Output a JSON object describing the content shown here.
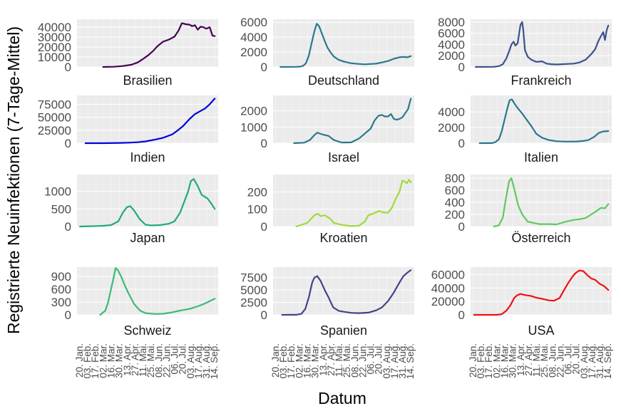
{
  "chart_data": {
    "type": "line",
    "ylabel": "Registrierte Neuinfektionen (7-Tage-Mittel)",
    "xlabel": "Datum",
    "x_tick_labels": [
      "20. Jan.",
      "03. Feb.",
      "17. Feb.",
      "02. Mar.",
      "16. Mar.",
      "30. Mar.",
      "13. Apr.",
      "27. Apr.",
      "11. Mai.",
      "25. Mai.",
      "08. Jun.",
      "22. Jun.",
      "06. Jul.",
      "20. Jul.",
      "03. Aug.",
      "17. Aug.",
      "31. Aug.",
      "14. Sep."
    ],
    "x_range": [
      "2020-01-15",
      "2020-09-20"
    ],
    "panels": [
      {
        "name": "Brasilien",
        "color": "#440154",
        "yticks": [
          0,
          10000,
          20000,
          30000,
          40000
        ],
        "ytick_labels": [
          "0",
          "10000",
          "20000",
          "30000",
          "40000"
        ],
        "ylim": [
          0,
          48000
        ],
        "x": [
          "2020-03-01",
          "2020-03-20",
          "2020-04-05",
          "2020-04-20",
          "2020-05-01",
          "2020-05-10",
          "2020-05-20",
          "2020-05-28",
          "2020-06-05",
          "2020-06-15",
          "2020-06-25",
          "2020-07-05",
          "2020-07-12",
          "2020-07-18",
          "2020-07-25",
          "2020-08-01",
          "2020-08-05",
          "2020-08-10",
          "2020-08-15",
          "2020-08-20",
          "2020-08-25",
          "2020-08-30",
          "2020-09-05",
          "2020-09-10",
          "2020-09-14"
        ],
        "y": [
          0,
          200,
          900,
          2200,
          4500,
          7800,
          12000,
          16000,
          21000,
          25500,
          27500,
          30500,
          36500,
          44000,
          43000,
          42500,
          41000,
          42000,
          37500,
          40500,
          40000,
          38500,
          40000,
          31500,
          31000
        ]
      },
      {
        "name": "Deutschland",
        "color": "#2a788e",
        "yticks": [
          0,
          2000,
          4000,
          6000
        ],
        "ytick_labels": [
          "0",
          "2000",
          "4000",
          "6000"
        ],
        "ylim": [
          0,
          6400
        ],
        "x": [
          "2020-01-28",
          "2020-02-26",
          "2020-03-03",
          "2020-03-08",
          "2020-03-13",
          "2020-03-18",
          "2020-03-23",
          "2020-03-28",
          "2020-04-01",
          "2020-04-05",
          "2020-04-10",
          "2020-04-15",
          "2020-04-20",
          "2020-04-25",
          "2020-05-01",
          "2020-05-10",
          "2020-05-20",
          "2020-06-01",
          "2020-06-15",
          "2020-06-25",
          "2020-07-05",
          "2020-07-15",
          "2020-07-25",
          "2020-08-05",
          "2020-08-15",
          "2020-08-25",
          "2020-09-01",
          "2020-09-08",
          "2020-09-14"
        ],
        "y": [
          0,
          20,
          50,
          150,
          500,
          1500,
          3200,
          4800,
          5800,
          5500,
          4500,
          3500,
          2600,
          2000,
          1400,
          950,
          700,
          500,
          400,
          350,
          400,
          450,
          600,
          800,
          1100,
          1300,
          1350,
          1300,
          1450
        ]
      },
      {
        "name": "Frankreich",
        "color": "#3b528b",
        "yticks": [
          0,
          2000,
          4000,
          6000,
          8000
        ],
        "ytick_labels": [
          "0",
          "2000",
          "4000",
          "6000",
          "8000"
        ],
        "ylim": [
          0,
          8500
        ],
        "x": [
          "2020-01-24",
          "2020-02-25",
          "2020-03-05",
          "2020-03-12",
          "2020-03-18",
          "2020-03-23",
          "2020-03-27",
          "2020-03-31",
          "2020-04-03",
          "2020-04-07",
          "2020-04-12",
          "2020-04-15",
          "2020-04-17",
          "2020-04-20",
          "2020-04-25",
          "2020-05-01",
          "2020-05-10",
          "2020-05-20",
          "2020-05-28",
          "2020-06-05",
          "2020-06-15",
          "2020-06-25",
          "2020-07-05",
          "2020-07-15",
          "2020-07-25",
          "2020-08-05",
          "2020-08-15",
          "2020-08-22",
          "2020-08-27",
          "2020-09-01",
          "2020-09-05",
          "2020-09-08",
          "2020-09-11",
          "2020-09-14"
        ],
        "y": [
          0,
          20,
          150,
          500,
          1500,
          2800,
          4000,
          4500,
          3800,
          4200,
          7500,
          8000,
          6500,
          3000,
          1800,
          1300,
          900,
          1000,
          600,
          500,
          450,
          500,
          550,
          600,
          800,
          1300,
          2300,
          3200,
          4500,
          5500,
          6200,
          4800,
          6500,
          7400
        ]
      },
      {
        "name": "Indien",
        "color": "#0000dd",
        "yticks": [
          0,
          25000,
          50000,
          75000
        ],
        "ytick_labels": [
          "0",
          "25000",
          "50000",
          "75000"
        ],
        "ylim": [
          0,
          92000
        ],
        "x": [
          "2020-01-30",
          "2020-03-01",
          "2020-04-01",
          "2020-04-15",
          "2020-05-01",
          "2020-05-15",
          "2020-06-01",
          "2020-06-15",
          "2020-07-01",
          "2020-07-10",
          "2020-07-20",
          "2020-08-01",
          "2020-08-10",
          "2020-08-20",
          "2020-08-28",
          "2020-09-05",
          "2020-09-14"
        ],
        "y": [
          0,
          0,
          500,
          900,
          1800,
          3500,
          7000,
          10500,
          17000,
          24000,
          33000,
          47000,
          56000,
          62000,
          67000,
          75000,
          86000
        ]
      },
      {
        "name": "Israel",
        "color": "#2a788e",
        "yticks": [
          0,
          1000,
          2000
        ],
        "ytick_labels": [
          "0",
          "1000",
          "2000"
        ],
        "ylim": [
          0,
          2950
        ],
        "x": [
          "2020-02-21",
          "2020-03-10",
          "2020-03-20",
          "2020-03-28",
          "2020-04-02",
          "2020-04-06",
          "2020-04-10",
          "2020-04-15",
          "2020-04-22",
          "2020-05-01",
          "2020-05-15",
          "2020-06-01",
          "2020-06-15",
          "2020-06-25",
          "2020-07-05",
          "2020-07-12",
          "2020-07-19",
          "2020-07-25",
          "2020-07-30",
          "2020-08-05",
          "2020-08-10",
          "2020-08-15",
          "2020-08-20",
          "2020-08-25",
          "2020-08-30",
          "2020-09-05",
          "2020-09-09",
          "2020-09-14"
        ],
        "y": [
          0,
          30,
          200,
          500,
          650,
          600,
          550,
          500,
          450,
          200,
          40,
          50,
          300,
          600,
          900,
          1400,
          1700,
          1750,
          1650,
          1650,
          1800,
          1500,
          1450,
          1500,
          1600,
          1900,
          2100,
          2750
        ]
      },
      {
        "name": "Italien",
        "color": "#2a788e",
        "yticks": [
          0,
          2000,
          4000
        ],
        "ytick_labels": [
          "0",
          "2000",
          "4000"
        ],
        "ylim": [
          0,
          6100
        ],
        "x": [
          "2020-01-31",
          "2020-02-22",
          "2020-02-28",
          "2020-03-05",
          "2020-03-10",
          "2020-03-15",
          "2020-03-20",
          "2020-03-24",
          "2020-03-28",
          "2020-04-02",
          "2020-04-08",
          "2020-04-15",
          "2020-04-22",
          "2020-05-01",
          "2020-05-10",
          "2020-05-20",
          "2020-06-01",
          "2020-06-15",
          "2020-07-01",
          "2020-07-20",
          "2020-08-01",
          "2020-08-10",
          "2020-08-20",
          "2020-08-28",
          "2020-09-05",
          "2020-09-14"
        ],
        "y": [
          0,
          10,
          150,
          500,
          1500,
          3000,
          4500,
          5500,
          5600,
          5000,
          4400,
          3800,
          3100,
          2200,
          1200,
          700,
          400,
          250,
          200,
          220,
          280,
          400,
          800,
          1300,
          1500,
          1550
        ]
      },
      {
        "name": "Japan",
        "color": "#22a884",
        "yticks": [
          0,
          500,
          1000
        ],
        "ytick_labels": [
          "0",
          "500",
          "1000"
        ],
        "ylim": [
          0,
          1480
        ],
        "x": [
          "2020-01-20",
          "2020-03-01",
          "2020-03-15",
          "2020-03-28",
          "2020-04-05",
          "2020-04-12",
          "2020-04-18",
          "2020-04-25",
          "2020-05-05",
          "2020-05-15",
          "2020-05-25",
          "2020-06-10",
          "2020-06-25",
          "2020-07-05",
          "2020-07-15",
          "2020-07-22",
          "2020-07-29",
          "2020-08-03",
          "2020-08-08",
          "2020-08-15",
          "2020-08-22",
          "2020-09-01",
          "2020-09-08",
          "2020-09-14"
        ],
        "y": [
          0,
          20,
          40,
          150,
          400,
          550,
          580,
          450,
          200,
          50,
          30,
          40,
          80,
          150,
          400,
          700,
          1000,
          1300,
          1350,
          1150,
          900,
          800,
          650,
          500
        ]
      },
      {
        "name": "Kroatien",
        "color": "#a0da39",
        "yticks": [
          0,
          100,
          200
        ],
        "ytick_labels": [
          "0",
          "100",
          "200"
        ],
        "ylim": [
          0,
          300
        ],
        "x": [
          "2020-02-25",
          "2020-03-15",
          "2020-03-25",
          "2020-03-30",
          "2020-04-04",
          "2020-04-08",
          "2020-04-15",
          "2020-04-25",
          "2020-05-01",
          "2020-05-15",
          "2020-06-01",
          "2020-06-15",
          "2020-06-25",
          "2020-07-01",
          "2020-07-10",
          "2020-07-20",
          "2020-07-28",
          "2020-08-05",
          "2020-08-12",
          "2020-08-17",
          "2020-08-20",
          "2020-08-25",
          "2020-08-30",
          "2020-09-03",
          "2020-09-07",
          "2020-09-11",
          "2020-09-14"
        ],
        "y": [
          0,
          20,
          55,
          70,
          72,
          60,
          65,
          45,
          20,
          10,
          2,
          5,
          30,
          65,
          75,
          90,
          80,
          80,
          110,
          150,
          170,
          200,
          265,
          260,
          250,
          270,
          255
        ]
      },
      {
        "name": "Österreich",
        "color": "#5ec962",
        "yticks": [
          0,
          200,
          400,
          600,
          800
        ],
        "ytick_labels": [
          "0",
          "200",
          "400",
          "600",
          "800"
        ],
        "ylim": [
          0,
          860
        ],
        "x": [
          "2020-02-25",
          "2020-03-05",
          "2020-03-12",
          "2020-03-18",
          "2020-03-23",
          "2020-03-27",
          "2020-03-30",
          "2020-04-03",
          "2020-04-08",
          "2020-04-15",
          "2020-04-25",
          "2020-05-05",
          "2020-05-15",
          "2020-06-01",
          "2020-06-15",
          "2020-07-01",
          "2020-07-15",
          "2020-07-25",
          "2020-08-05",
          "2020-08-15",
          "2020-08-25",
          "2020-09-01",
          "2020-09-08",
          "2020-09-14"
        ],
        "y": [
          0,
          20,
          150,
          500,
          750,
          800,
          700,
          550,
          350,
          200,
          80,
          60,
          40,
          40,
          35,
          80,
          110,
          120,
          140,
          200,
          260,
          310,
          300,
          370
        ]
      },
      {
        "name": "Schweiz",
        "color": "#3cbb75",
        "yticks": [
          0,
          300,
          600,
          900
        ],
        "ytick_labels": [
          "0",
          "300",
          "600",
          "900"
        ],
        "ylim": [
          0,
          1120
        ],
        "x": [
          "2020-02-25",
          "2020-03-05",
          "2020-03-10",
          "2020-03-15",
          "2020-03-20",
          "2020-03-23",
          "2020-03-27",
          "2020-04-02",
          "2020-04-08",
          "2020-04-15",
          "2020-04-25",
          "2020-05-05",
          "2020-05-15",
          "2020-06-01",
          "2020-06-15",
          "2020-07-01",
          "2020-07-15",
          "2020-08-01",
          "2020-08-15",
          "2020-08-25",
          "2020-09-05",
          "2020-09-14"
        ],
        "y": [
          0,
          100,
          300,
          600,
          900,
          1100,
          1050,
          900,
          700,
          500,
          250,
          100,
          40,
          20,
          25,
          60,
          100,
          140,
          200,
          250,
          320,
          380
        ]
      },
      {
        "name": "Spanien",
        "color": "#414487",
        "yticks": [
          0,
          2500,
          5000,
          7500
        ],
        "ytick_labels": [
          "0",
          "2500",
          "5000",
          "7500"
        ],
        "ylim": [
          0,
          9600
        ],
        "x": [
          "2020-01-31",
          "2020-02-25",
          "2020-03-05",
          "2020-03-12",
          "2020-03-18",
          "2020-03-24",
          "2020-03-28",
          "2020-04-02",
          "2020-04-08",
          "2020-04-15",
          "2020-04-22",
          "2020-04-30",
          "2020-05-10",
          "2020-05-20",
          "2020-06-01",
          "2020-06-15",
          "2020-07-01",
          "2020-07-15",
          "2020-07-25",
          "2020-08-05",
          "2020-08-15",
          "2020-08-25",
          "2020-09-01",
          "2020-09-08",
          "2020-09-14"
        ],
        "y": [
          0,
          10,
          200,
          1200,
          3500,
          6500,
          7500,
          7800,
          6800,
          5000,
          3500,
          1500,
          800,
          600,
          400,
          350,
          450,
          900,
          1500,
          2800,
          4500,
          6500,
          7800,
          8500,
          9000
        ]
      },
      {
        "name": "USA",
        "color": "#ee1111",
        "yticks": [
          0,
          20000,
          40000,
          60000
        ],
        "ytick_labels": [
          "0",
          "20000",
          "40000",
          "60000"
        ],
        "ylim": [
          0,
          71000
        ],
        "x": [
          "2020-01-21",
          "2020-03-01",
          "2020-03-10",
          "2020-03-18",
          "2020-03-25",
          "2020-04-01",
          "2020-04-06",
          "2020-04-12",
          "2020-04-20",
          "2020-05-01",
          "2020-05-10",
          "2020-05-20",
          "2020-06-01",
          "2020-06-10",
          "2020-06-20",
          "2020-06-28",
          "2020-07-05",
          "2020-07-12",
          "2020-07-18",
          "2020-07-25",
          "2020-08-01",
          "2020-08-08",
          "2020-08-15",
          "2020-08-22",
          "2020-08-30",
          "2020-09-06",
          "2020-09-14"
        ],
        "y": [
          0,
          50,
          1000,
          6000,
          14000,
          25000,
          29000,
          31000,
          29500,
          28000,
          25500,
          24000,
          21500,
          21000,
          25000,
          37000,
          47000,
          56000,
          62000,
          66000,
          65000,
          59000,
          54000,
          52000,
          46000,
          43000,
          37000
        ]
      }
    ]
  }
}
